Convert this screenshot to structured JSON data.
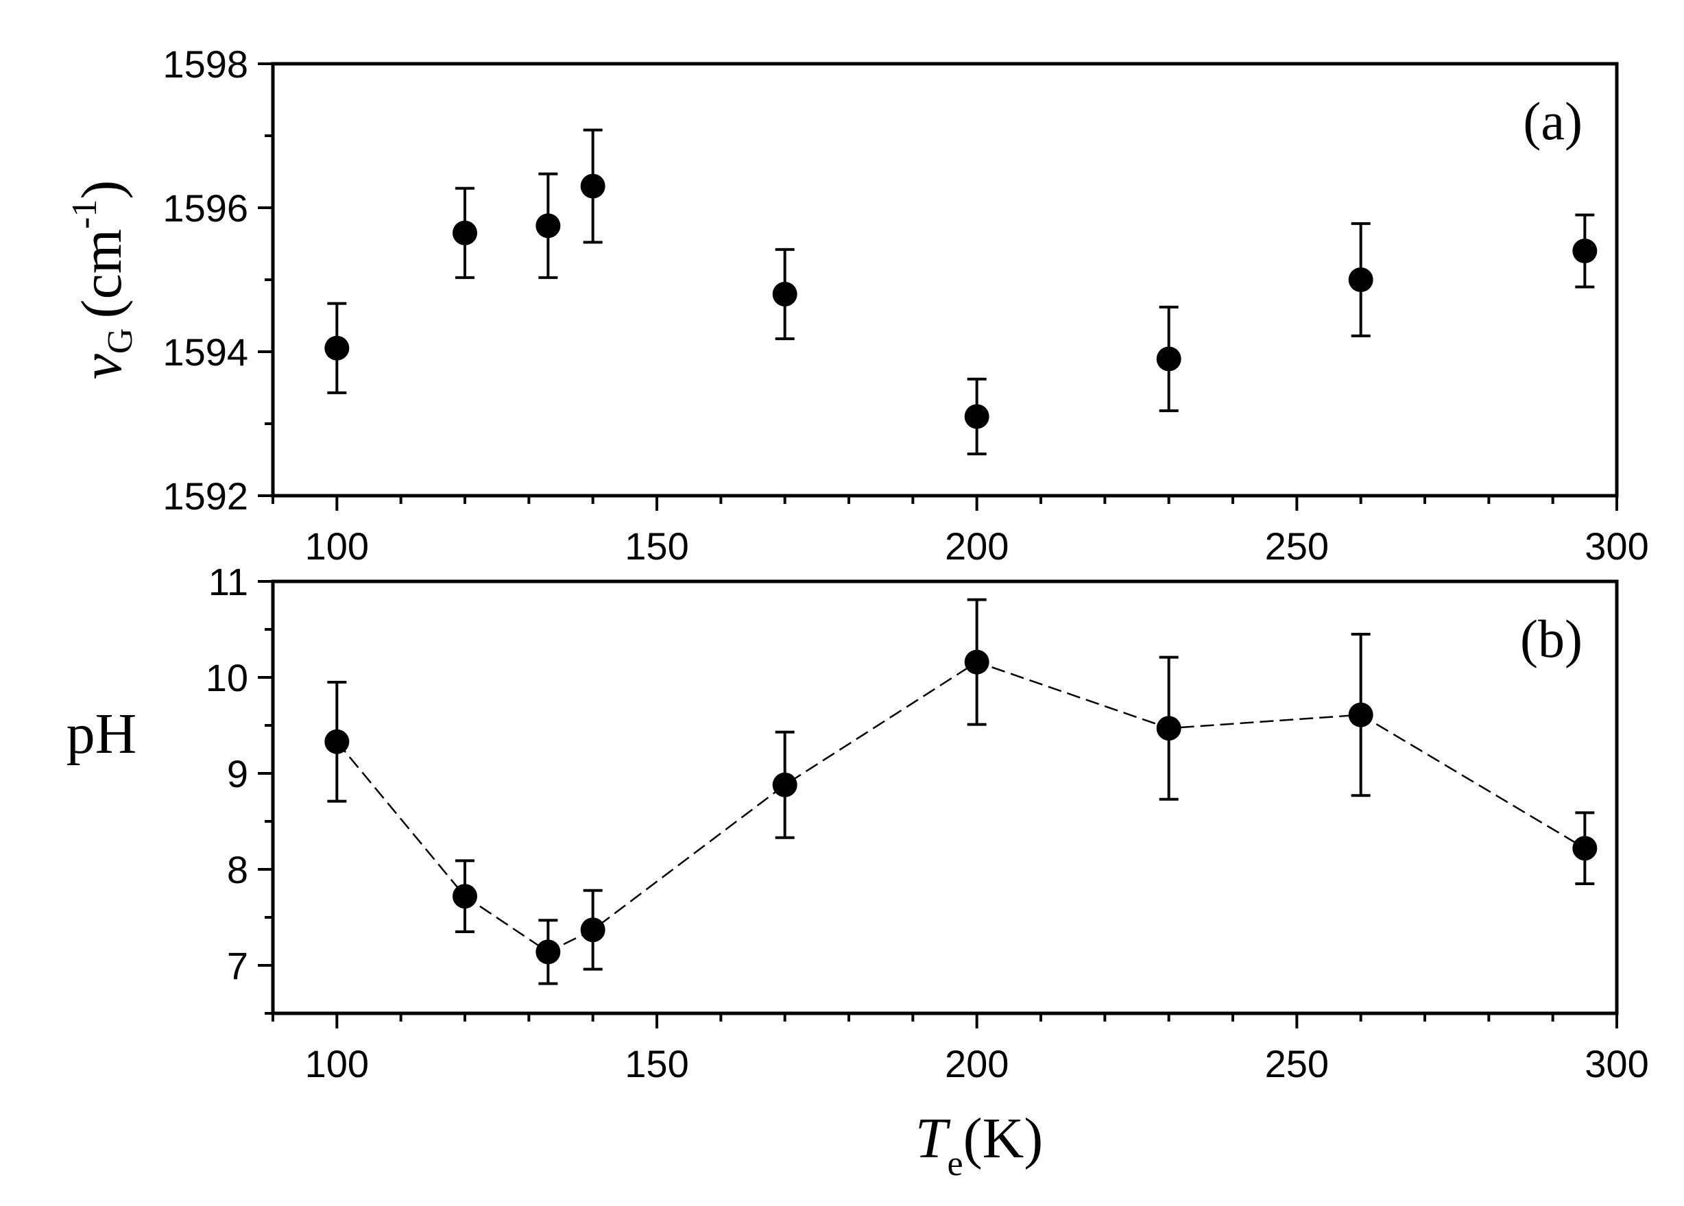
{
  "chart_data": [
    {
      "panel_label": "(a)",
      "type": "scatter",
      "xlabel": "",
      "ylabel": {
        "symbol": "ν",
        "subscript": "G",
        "unit": "(cm",
        "superscript": "-1",
        "unit_close": ")"
      },
      "xlim": [
        90,
        300
      ],
      "ylim": [
        1592,
        1598
      ],
      "xticks": [
        100,
        150,
        200,
        250,
        300
      ],
      "yticks": [
        1592,
        1594,
        1596,
        1598
      ],
      "x_minor_step": 10,
      "y_minor_step": 1,
      "connect_points": false,
      "grid": false,
      "marker_color": "#000000",
      "points": [
        {
          "x": 100,
          "y": 1594.05,
          "err": 0.62
        },
        {
          "x": 120,
          "y": 1595.65,
          "err": 0.62
        },
        {
          "x": 133,
          "y": 1595.75,
          "err": 0.72
        },
        {
          "x": 140,
          "y": 1596.3,
          "err": 0.78
        },
        {
          "x": 170,
          "y": 1594.8,
          "err": 0.62
        },
        {
          "x": 200,
          "y": 1593.1,
          "err": 0.52
        },
        {
          "x": 230,
          "y": 1593.9,
          "err": 0.72
        },
        {
          "x": 260,
          "y": 1595.0,
          "err": 0.78
        },
        {
          "x": 295,
          "y": 1595.4,
          "err": 0.5
        }
      ]
    },
    {
      "panel_label": "(b)",
      "type": "line",
      "xlabel": {
        "symbol": "T",
        "subscript": "e",
        "unit": "(K)"
      },
      "ylabel": {
        "text": "pH"
      },
      "xlim": [
        90,
        300
      ],
      "ylim": [
        6.5,
        11
      ],
      "xticks": [
        100,
        150,
        200,
        250,
        300
      ],
      "yticks": [
        7,
        8,
        9,
        10,
        11
      ],
      "x_minor_step": 10,
      "y_minor_step": 0.5,
      "connect_points": true,
      "line_style": "dashed",
      "grid": false,
      "marker_color": "#000000",
      "points": [
        {
          "x": 100,
          "y": 9.33,
          "err": 0.62
        },
        {
          "x": 120,
          "y": 7.72,
          "err": 0.37
        },
        {
          "x": 133,
          "y": 7.14,
          "err": 0.33
        },
        {
          "x": 140,
          "y": 7.37,
          "err": 0.41
        },
        {
          "x": 170,
          "y": 8.88,
          "err": 0.55
        },
        {
          "x": 200,
          "y": 10.16,
          "err": 0.65
        },
        {
          "x": 230,
          "y": 9.47,
          "err": 0.74
        },
        {
          "x": 260,
          "y": 9.61,
          "err": 0.84
        },
        {
          "x": 295,
          "y": 8.22,
          "err": 0.37
        }
      ]
    }
  ]
}
